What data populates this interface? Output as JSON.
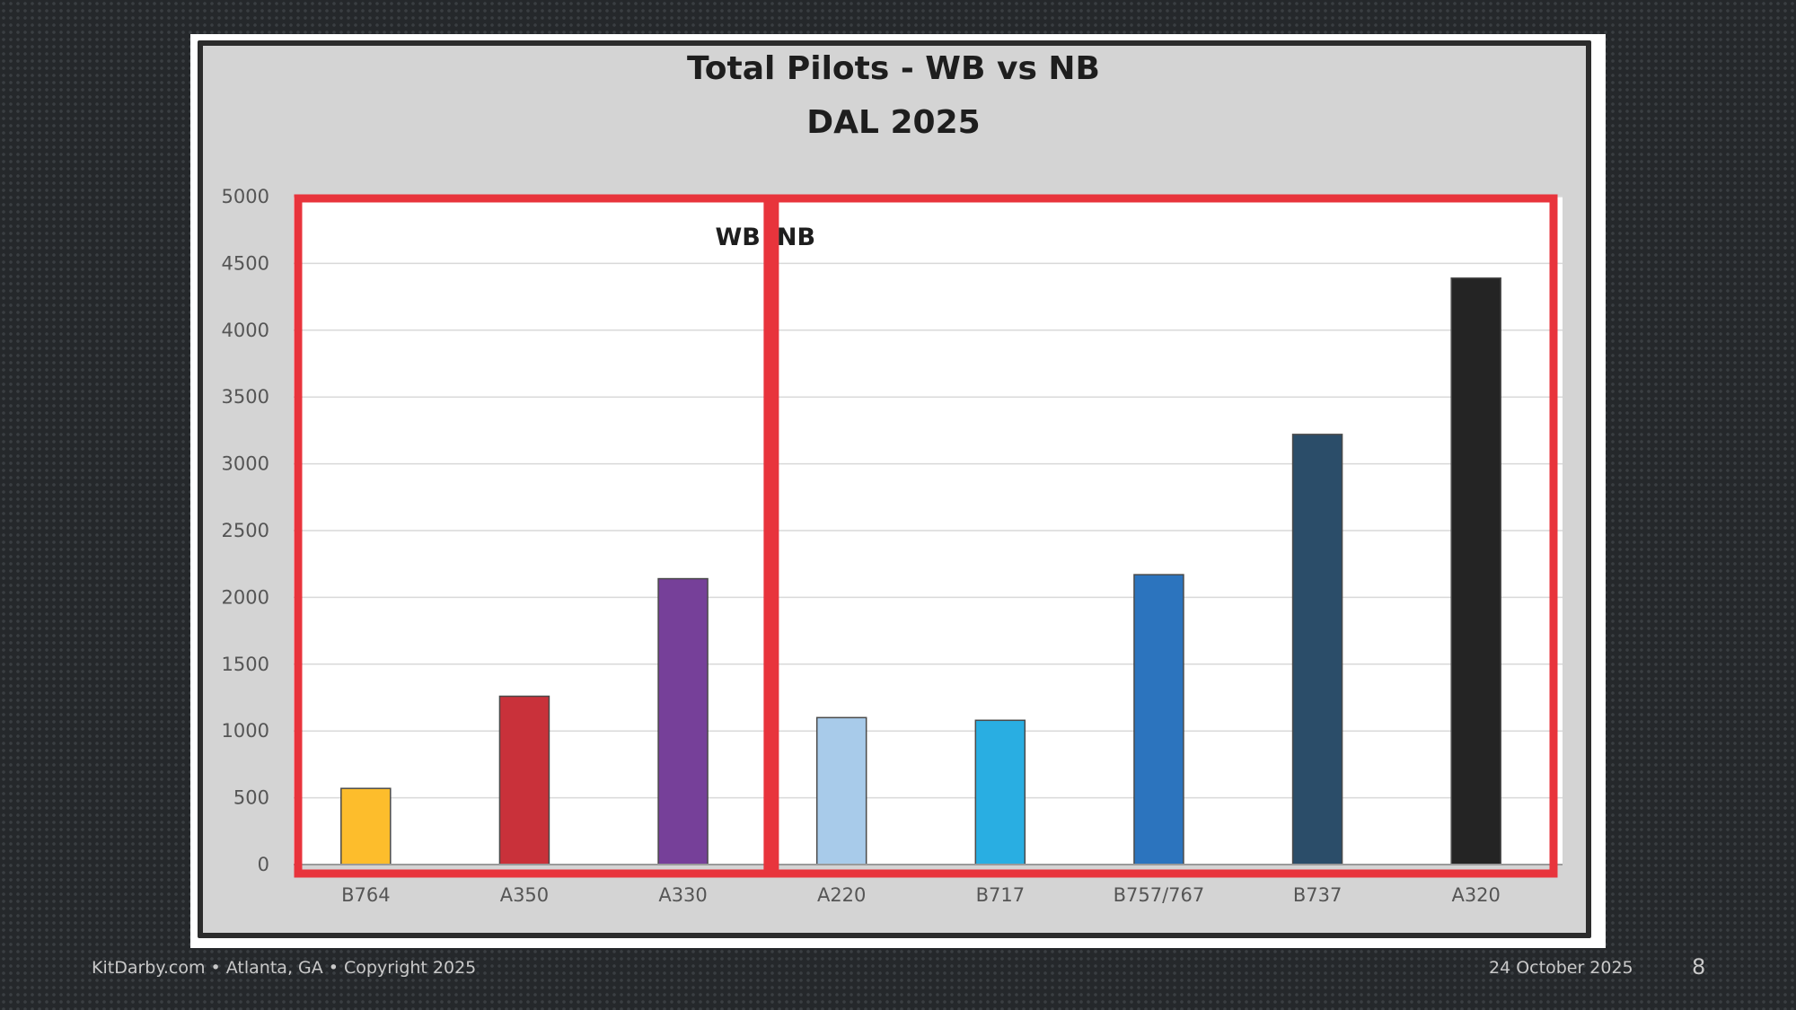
{
  "footer": {
    "left_text": "KitDarby.com • Atlanta, GA • Copyright 2025",
    "date": "24 October 2025",
    "page_number": "8"
  },
  "chart_data": {
    "type": "bar",
    "title": "Total Pilots - WB vs NB",
    "subtitle": "DAL 2025",
    "xlabel": "",
    "ylabel": "",
    "categories": [
      "B764",
      "A350",
      "A330",
      "A220",
      "B717",
      "B757/767",
      "B737",
      "A320"
    ],
    "values": [
      570,
      1260,
      2140,
      1100,
      1080,
      2170,
      3220,
      4390
    ],
    "bar_colors": [
      "#fdbd2c",
      "#c9313a",
      "#764099",
      "#a8cbea",
      "#29aee2",
      "#2c74be",
      "#2b4d69",
      "#242424"
    ],
    "ylim": [
      0,
      5000
    ],
    "yticks": [
      0,
      500,
      1000,
      1500,
      2000,
      2500,
      3000,
      3500,
      4000,
      4500,
      5000
    ],
    "grid": true,
    "groups": [
      {
        "label": "WB",
        "categories": [
          "B764",
          "A350",
          "A330"
        ],
        "box_color": "#e8343c"
      },
      {
        "label": "NB",
        "categories": [
          "A220",
          "B717",
          "B757/767",
          "B737",
          "A320"
        ],
        "box_color": "#e8343c"
      }
    ]
  }
}
